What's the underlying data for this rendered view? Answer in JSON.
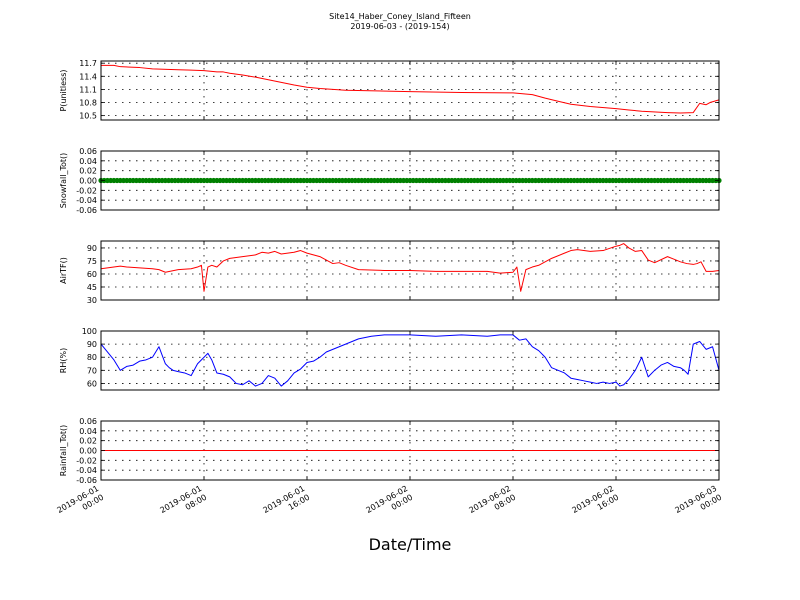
{
  "title_line1": "Site14_Haber_Coney_Island_Fifteen",
  "title_line2": "2019-06-03 - (2019-154)",
  "xlabel": "Date/Time",
  "x_ticks": [
    {
      "line1": "2019-06-01",
      "line2": "00:00"
    },
    {
      "line1": "2019-06-01",
      "line2": "08:00"
    },
    {
      "line1": "2019-06-01",
      "line2": "16:00"
    },
    {
      "line1": "2019-06-02",
      "line2": "00:00"
    },
    {
      "line1": "2019-06-02",
      "line2": "08:00"
    },
    {
      "line1": "2019-06-02",
      "line2": "16:00"
    },
    {
      "line1": "2019-06-03",
      "line2": "00:00"
    }
  ],
  "chart_data": [
    {
      "type": "line",
      "ylabel": "P(unitless)",
      "ylim": [
        10.4,
        11.75
      ],
      "yticks": [
        "10.5",
        "10.8",
        "11.1",
        "11.4",
        "11.7"
      ],
      "ytick_values": [
        10.5,
        10.8,
        11.1,
        11.4,
        11.7
      ],
      "color": "#ff0000",
      "x_hours": [
        0,
        1,
        1.5,
        3,
        4,
        6,
        7,
        8,
        9,
        9.5,
        10,
        11,
        12,
        13,
        14,
        15,
        16,
        17,
        19,
        24,
        28,
        32,
        33.5,
        34.5,
        35.5,
        36.5,
        38,
        40,
        41,
        42,
        44,
        45,
        46,
        46.5,
        47,
        47.3,
        48
      ],
      "y": [
        11.65,
        11.65,
        11.62,
        11.6,
        11.57,
        11.55,
        11.54,
        11.53,
        11.5,
        11.5,
        11.47,
        11.43,
        11.38,
        11.32,
        11.26,
        11.2,
        11.15,
        11.12,
        11.08,
        11.05,
        11.03,
        11.02,
        10.98,
        10.9,
        10.83,
        10.76,
        10.71,
        10.66,
        10.63,
        10.6,
        10.57,
        10.56,
        10.57,
        10.78,
        10.75,
        10.8,
        10.86
      ]
    },
    {
      "type": "scatter",
      "ylabel": "Snowfall_Tot()",
      "ylim": [
        -0.06,
        0.06
      ],
      "yticks": [
        "-0.06",
        "-0.04",
        "-0.02",
        "0.00",
        "0.02",
        "0.04",
        "0.06"
      ],
      "ytick_values": [
        -0.06,
        -0.04,
        -0.02,
        0.0,
        0.02,
        0.04,
        0.06
      ],
      "color": "#008000",
      "constant_value": 0.0,
      "x_range_hours": [
        0,
        48
      ]
    },
    {
      "type": "line",
      "ylabel": "AirTF()",
      "ylim": [
        30,
        98
      ],
      "yticks": [
        "30",
        "45",
        "60",
        "75",
        "90"
      ],
      "ytick_values": [
        30,
        45,
        60,
        75,
        90
      ],
      "color": "#ff0000",
      "x_hours": [
        0,
        1,
        1.5,
        2,
        3,
        4,
        4.5,
        5,
        6,
        7,
        7.5,
        7.8,
        8,
        8.3,
        8.6,
        9,
        9.5,
        10,
        11,
        12,
        12.5,
        13,
        13.5,
        14,
        14.5,
        15,
        15.5,
        16,
        16.5,
        17,
        17.5,
        18,
        18.5,
        19,
        20,
        22,
        24,
        26,
        28,
        30,
        31,
        32,
        32.3,
        32.6,
        33,
        33.5,
        34,
        35,
        36,
        36.5,
        37,
        38,
        39,
        40,
        40.3,
        40.6,
        41,
        41.5,
        42,
        42.5,
        43,
        44,
        44.5,
        45,
        45.5,
        46,
        46.3,
        46.6,
        47,
        47.5,
        48
      ],
      "y": [
        66,
        68,
        69,
        68,
        67,
        66,
        65,
        62,
        65,
        66,
        68,
        70,
        40,
        68,
        70,
        68,
        75,
        78,
        80,
        82,
        85,
        84,
        86,
        83,
        84,
        85,
        87,
        84,
        82,
        80,
        76,
        72,
        73,
        70,
        65,
        64,
        64,
        63,
        63,
        63,
        61,
        62,
        68,
        40,
        65,
        68,
        70,
        78,
        84,
        87,
        88,
        86,
        87,
        92,
        93,
        95,
        90,
        86,
        87,
        76,
        73,
        80,
        77,
        74,
        72,
        71,
        72,
        74,
        63,
        63,
        64
      ]
    },
    {
      "type": "line",
      "ylabel": "RH(%)",
      "ylim": [
        55,
        100
      ],
      "yticks": [
        "60",
        "70",
        "80",
        "90",
        "100"
      ],
      "ytick_values": [
        60,
        70,
        80,
        90,
        100
      ],
      "color": "#0000ff",
      "x_hours": [
        0,
        0.5,
        1,
        1.5,
        2,
        2.5,
        3,
        3.5,
        4,
        4.5,
        5,
        5.3,
        5.6,
        6,
        6.5,
        7,
        7.5,
        8,
        8.3,
        8.6,
        9,
        9.5,
        10,
        10.5,
        11,
        11.5,
        12,
        12.5,
        13,
        13.5,
        14,
        14.5,
        15,
        15.5,
        16,
        16.5,
        17,
        17.5,
        18,
        18.5,
        19,
        20,
        21,
        22,
        24,
        26,
        28,
        30,
        31,
        32,
        32.5,
        33,
        33.5,
        34,
        34.5,
        35,
        35.5,
        36,
        36.5,
        37,
        37.5,
        38,
        38.5,
        39,
        39.5,
        40,
        40.3,
        40.6,
        41,
        41.5,
        42,
        42.5,
        43,
        43.5,
        44,
        44.5,
        45,
        45.3,
        45.6,
        46,
        46.5,
        47,
        47.5,
        48
      ],
      "y": [
        90,
        84,
        78,
        70,
        73,
        74,
        77,
        78,
        80,
        88,
        75,
        72,
        70,
        69,
        68,
        66,
        75,
        80,
        83,
        78,
        68,
        67,
        65,
        60,
        59,
        62,
        58,
        60,
        66,
        64,
        58,
        62,
        68,
        71,
        76,
        77,
        80,
        84,
        86,
        88,
        90,
        94,
        96,
        97,
        97,
        96,
        97,
        96,
        97,
        97,
        93,
        94,
        88,
        85,
        80,
        72,
        70,
        68,
        64,
        63,
        62,
        61,
        60,
        61,
        60,
        61,
        58,
        59,
        63,
        70,
        80,
        65,
        70,
        74,
        76,
        73,
        72,
        70,
        67,
        90,
        92,
        86,
        88,
        70
      ]
    },
    {
      "type": "line",
      "ylabel": "Rainfall_Tot()",
      "ylim": [
        -0.06,
        0.06
      ],
      "yticks": [
        "-0.06",
        "-0.04",
        "-0.02",
        "0.00",
        "0.02",
        "0.04",
        "0.06"
      ],
      "ytick_values": [
        -0.06,
        -0.04,
        -0.02,
        0.0,
        0.02,
        0.04,
        0.06
      ],
      "color": "#ff0000",
      "x_hours": [
        0,
        48
      ],
      "y": [
        0.0,
        0.0
      ]
    }
  ]
}
